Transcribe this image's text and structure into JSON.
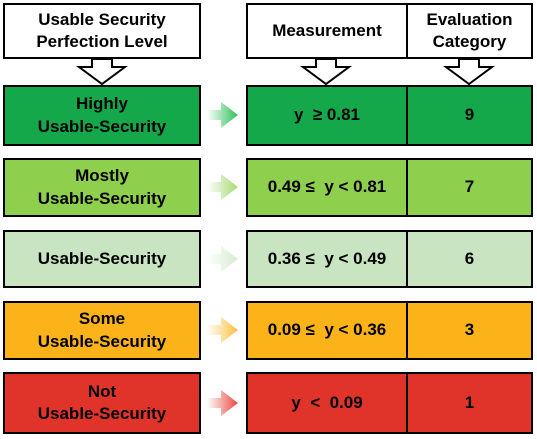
{
  "headers": {
    "level": "Usable Security\nPerfection Level",
    "measurement": "Measurement",
    "category": "Evaluation\nCategory"
  },
  "rows": [
    {
      "level": "Highly\nUsable-Security",
      "measurement": "y  ≥ 0.81",
      "category": "9",
      "color": "#14a84b",
      "arrow_color": "#2dbf5a"
    },
    {
      "level": "Mostly\nUsable-Security",
      "measurement": "0.49 ≤  y < 0.81",
      "category": "7",
      "color": "#8fcf4e",
      "arrow_color": "#a6d970"
    },
    {
      "level": "Usable-Security",
      "measurement": "0.36 ≤  y < 0.49",
      "category": "6",
      "color": "#c9e4c0",
      "arrow_color": "#d7ecd0"
    },
    {
      "level": "Some\nUsable-Security",
      "measurement": "0.09 ≤  y < 0.36",
      "category": "3",
      "color": "#fcb319",
      "arrow_color": "#fcc03e"
    },
    {
      "level": "Not\nUsable-Security",
      "measurement": "y  <  0.09",
      "category": "1",
      "color": "#e0342a",
      "arrow_color": "#e84a3f"
    }
  ]
}
